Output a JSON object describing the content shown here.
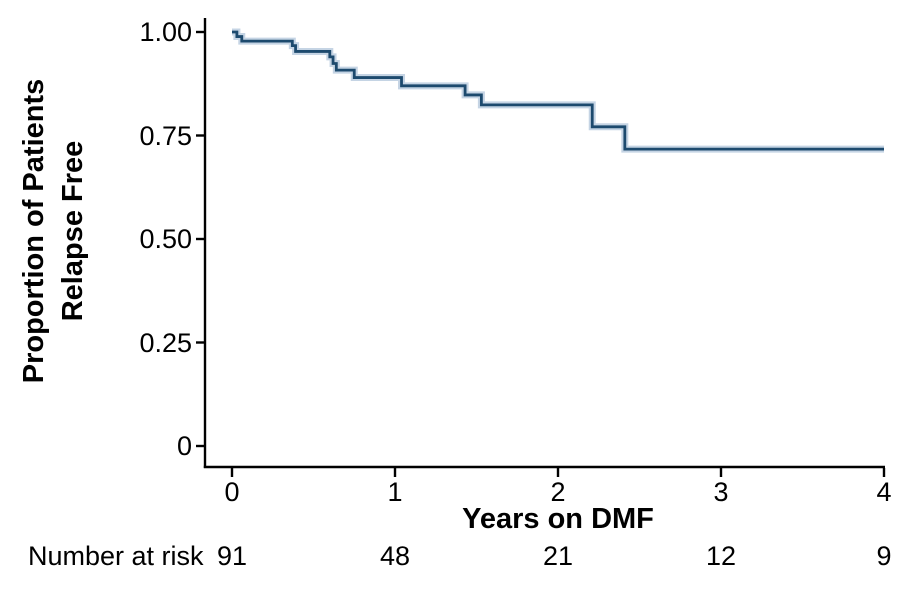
{
  "chart_data": {
    "type": "line",
    "subtype": "kaplan-meier-step",
    "title": "",
    "xlabel": "Years on DMF",
    "ylabel": "Proportion of Patients Relapse Free",
    "ylabel_lines": [
      "Proportion of Patients",
      "Relapse Free"
    ],
    "xlim": [
      0,
      4
    ],
    "ylim": [
      0,
      1
    ],
    "grid": false,
    "legend": "none",
    "x_ticks": {
      "values": [
        0,
        1,
        2,
        3,
        4
      ],
      "labels": [
        "0",
        "1",
        "2",
        "3",
        "4"
      ]
    },
    "y_ticks": {
      "values": [
        1.0,
        0.75,
        0.5,
        0.25,
        0
      ],
      "labels": [
        "1.00",
        "0.75",
        "0.50",
        "0.25",
        "0"
      ]
    },
    "series": [
      {
        "name": "DMF",
        "color": "#1d4a6e",
        "halo_color": "rgba(150,176,206,0.55)",
        "points": [
          [
            0.0,
            1.0
          ],
          [
            0.03,
            0.989
          ],
          [
            0.06,
            0.978
          ],
          [
            0.37,
            0.967
          ],
          [
            0.39,
            0.953
          ],
          [
            0.6,
            0.94
          ],
          [
            0.62,
            0.924
          ],
          [
            0.64,
            0.908
          ],
          [
            0.75,
            0.89
          ],
          [
            1.04,
            0.87
          ],
          [
            1.43,
            0.848
          ],
          [
            1.53,
            0.824
          ],
          [
            2.21,
            0.771
          ],
          [
            2.41,
            0.717
          ]
        ],
        "end_time": 4.0
      }
    ],
    "number_at_risk": {
      "label": "Number at risk",
      "times": [
        0,
        1,
        2,
        3,
        4
      ],
      "counts": [
        "91",
        "48",
        "21",
        "12",
        "9"
      ]
    },
    "axis_color": "#000000",
    "background_color": "#ffffff"
  }
}
